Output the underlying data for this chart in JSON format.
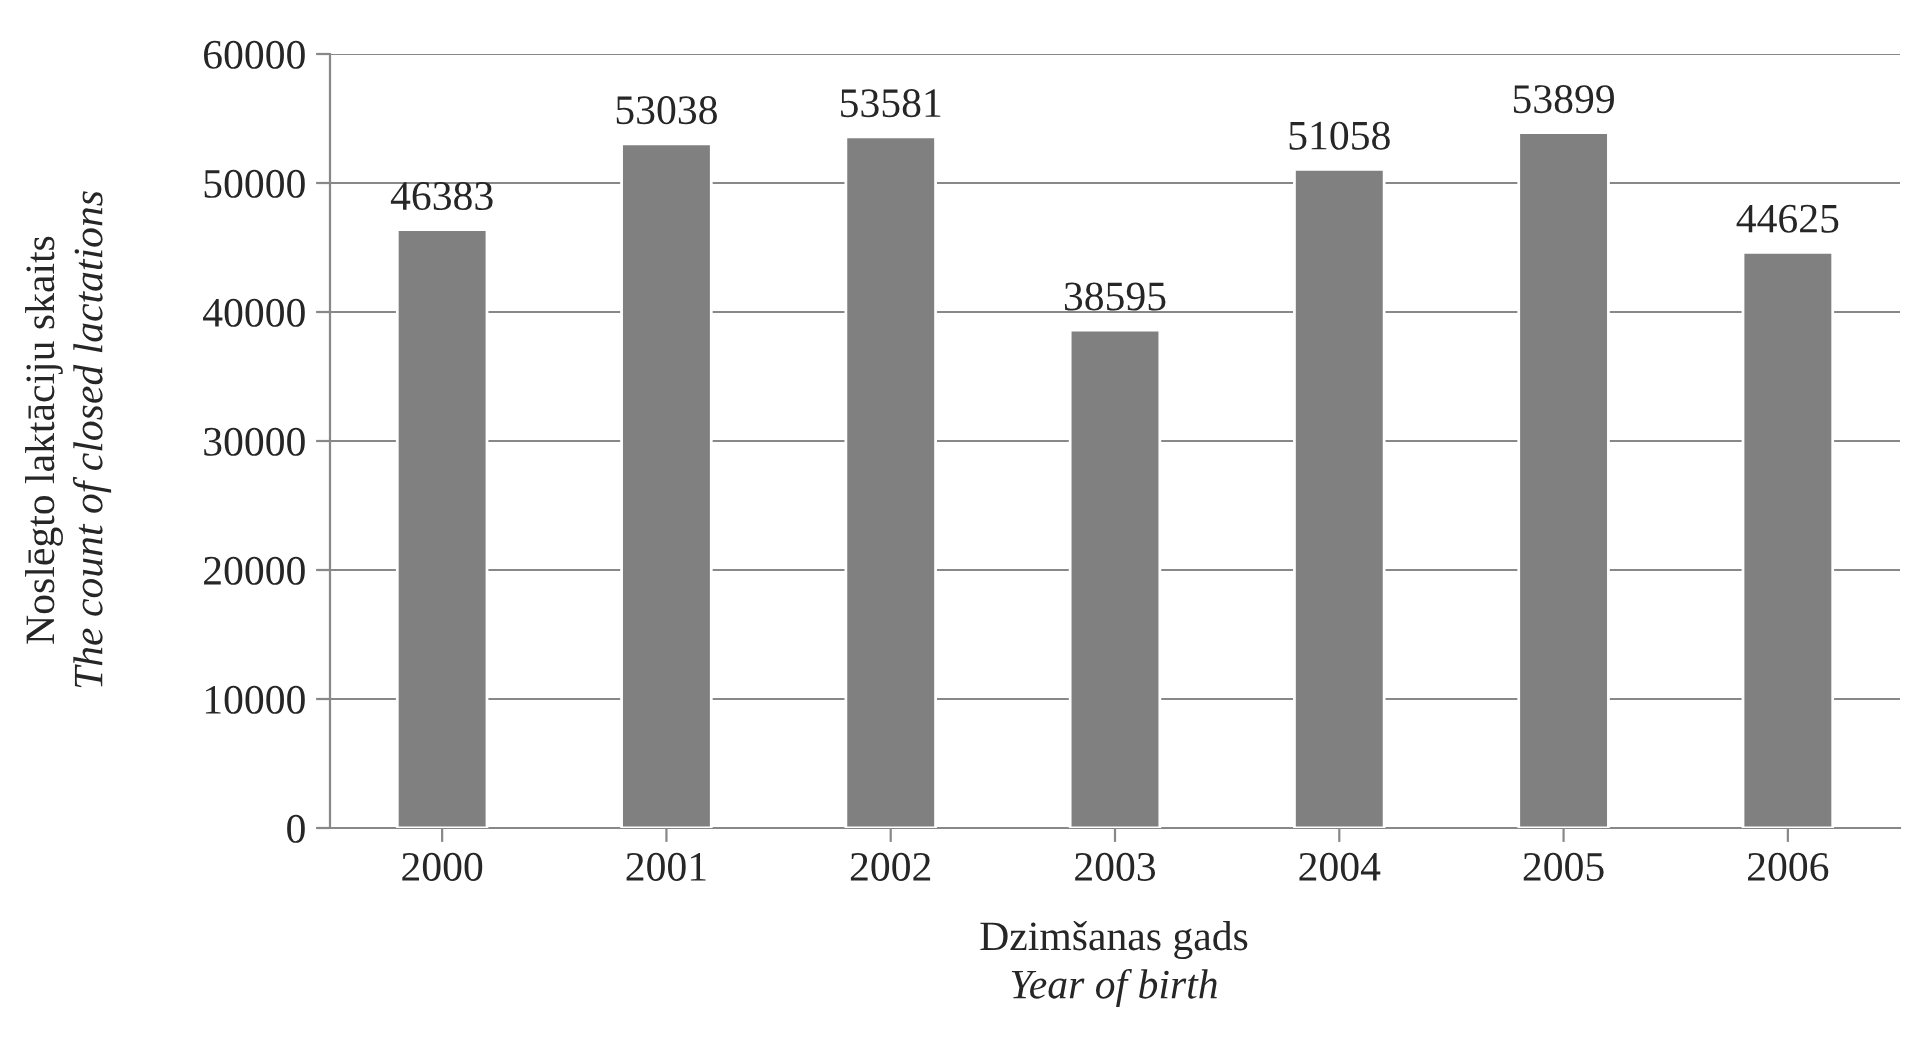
{
  "chart_data": {
    "type": "bar",
    "categories": [
      "2000",
      "2001",
      "2002",
      "2003",
      "2004",
      "2005",
      "2006"
    ],
    "values": [
      46383,
      53038,
      53581,
      38595,
      51058,
      53899,
      44625
    ],
    "color": "#808080",
    "ylim": [
      0,
      60000
    ],
    "yticks": [
      0,
      10000,
      20000,
      30000,
      40000,
      50000,
      60000
    ],
    "grid": "y",
    "data_labels": true,
    "xlabel": "Dzimšanas gads\nYear of birth",
    "ylabel": "Noslēgto laktāciju skaits\nThe count of closed lactations"
  }
}
